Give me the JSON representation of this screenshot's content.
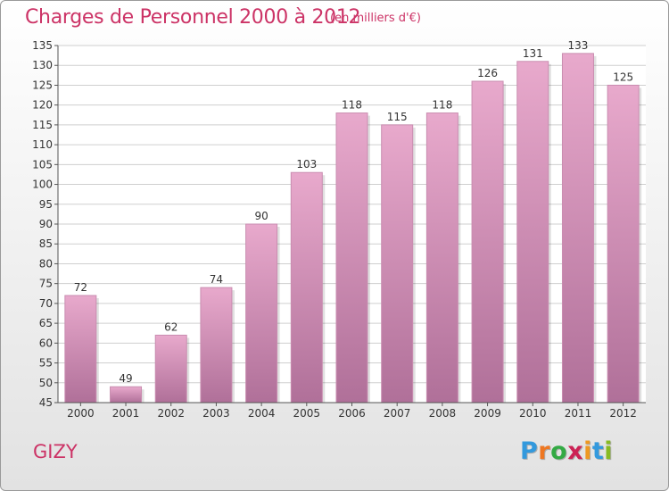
{
  "title": "Charges de Personnel 2000 à 2012",
  "subtitle": "(en milliers d'€)",
  "commune": "GIZY",
  "brand": {
    "letters": [
      "P",
      "r",
      "o",
      "x",
      "i",
      "t",
      "i"
    ],
    "colors": [
      "#3399dd",
      "#ee7722",
      "#33aa44",
      "#cc2255",
      "#ee9922",
      "#3399dd",
      "#88bb22"
    ]
  },
  "colors": {
    "bar_top": "#e8a9cc",
    "bar_bottom": "#b07099",
    "title": "#cc3366",
    "grid": "#cfcfcf",
    "axis": "#555555"
  },
  "chart_data": {
    "type": "bar",
    "categories": [
      "2000",
      "2001",
      "2002",
      "2003",
      "2004",
      "2005",
      "2006",
      "2007",
      "2008",
      "2009",
      "2010",
      "2011",
      "2012"
    ],
    "values": [
      72,
      49,
      62,
      74,
      90,
      103,
      118,
      115,
      118,
      126,
      131,
      133,
      125
    ],
    "ylim": [
      45,
      135
    ],
    "yticks": [
      45,
      50,
      55,
      60,
      65,
      70,
      75,
      80,
      85,
      90,
      95,
      100,
      105,
      110,
      115,
      120,
      125,
      130,
      135
    ],
    "grid": true,
    "data_labels": true
  }
}
